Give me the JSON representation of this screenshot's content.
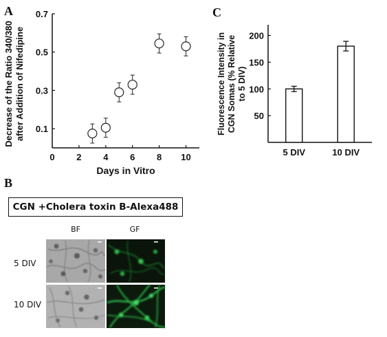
{
  "panels": {
    "a_label": "A",
    "b_label": "B",
    "c_label": "C"
  },
  "chart_data": [
    {
      "type": "scatter",
      "title": "",
      "xlabel": "Days in Vitro",
      "ylabel_line1": "Decrease of the Ratio 340/380",
      "ylabel_line2": "after Addition of Nifedipine",
      "xlim": [
        0,
        11
      ],
      "ylim": [
        0,
        0.7
      ],
      "xticks": [
        0,
        2,
        4,
        6,
        8,
        10
      ],
      "yticks": [
        0.1,
        0.3,
        0.5,
        0.7
      ],
      "ytick_labels": [
        "0.1",
        "0.3",
        "0.5",
        "0.7"
      ],
      "x": [
        3,
        4,
        5,
        6,
        8,
        10
      ],
      "y": [
        0.075,
        0.105,
        0.29,
        0.33,
        0.545,
        0.53
      ],
      "error": [
        0.05,
        0.05,
        0.05,
        0.05,
        0.05,
        0.05
      ],
      "marker": "open-circle",
      "grid": false
    },
    {
      "type": "bar",
      "title": "",
      "ylabel_line1": "Fluorescence Intensity in",
      "ylabel_line2": "CGN Somas (% Relative",
      "ylabel_line3": "to 5 DIV)",
      "categories": [
        "5 DIV",
        "10 DIV"
      ],
      "values": [
        100,
        180
      ],
      "error": [
        5,
        9
      ],
      "ylim": [
        0,
        220
      ],
      "yticks": [
        50,
        100,
        150,
        200
      ],
      "bar_color": "#ffffff",
      "grid": false
    }
  ],
  "panel_b": {
    "title": "CGN +Cholera toxin B-Alexa488",
    "col_labels": [
      "BF",
      "GF"
    ],
    "row_labels": [
      "5 DIV",
      "10 DIV"
    ],
    "gf_color": "#1fa33b"
  }
}
